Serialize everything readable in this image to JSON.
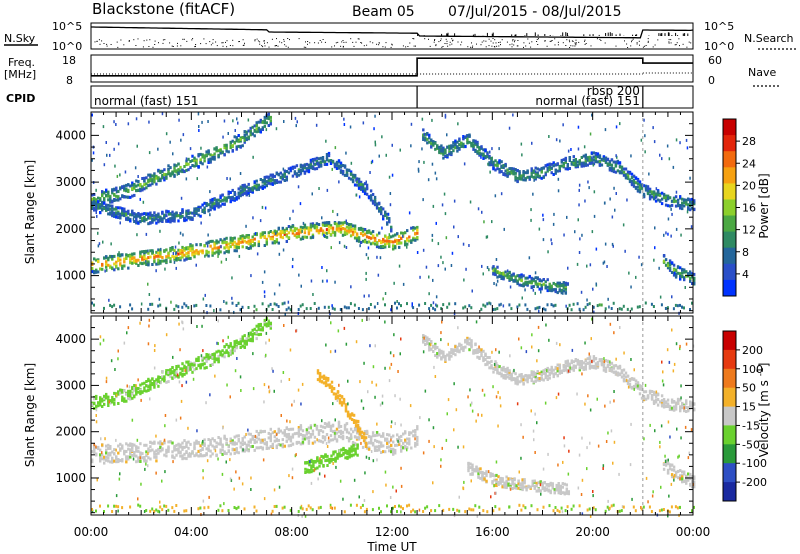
{
  "header": {
    "station": "Blackstone (fitACF)",
    "beam": "Beam 05",
    "date_range": "07/Jul/2015 - 08/Jul/2015"
  },
  "strip": {
    "nsky_label": "N.Sky",
    "nsearch_label": "N.Search",
    "noise_ticks": [
      "10^5",
      "10^0"
    ],
    "freq_label": "Freq.",
    "freq_unit": "[MHz]",
    "freq_ticks": [
      "18",
      "8"
    ],
    "nave_label": "Nave",
    "nave_ticks": [
      "60",
      "0"
    ],
    "cpid_label": "CPID",
    "cpid_segments": [
      {
        "label": "normal (fast) 151",
        "start": 0,
        "end": 13
      },
      {
        "label": "normal (fast) 151",
        "start": 13,
        "end": 22
      },
      {
        "label": "rbsp 200",
        "start": 22,
        "end": 24
      }
    ],
    "freq_steps": [
      {
        "start": 0,
        "end": 13,
        "freq": 10.3
      },
      {
        "start": 13,
        "end": 22,
        "freq": 16.8
      },
      {
        "start": 22,
        "end": 24,
        "freq": 15.0
      }
    ]
  },
  "chart_data": [
    {
      "type": "heatmap",
      "title": "",
      "xlabel": "",
      "ylabel": "Slant Range [km]",
      "x_range_hours": [
        0,
        24
      ],
      "ylim": [
        200,
        4500
      ],
      "yticks": [
        1000,
        2000,
        3000,
        4000
      ],
      "colorbar": {
        "label": "Power [dB]",
        "range": [
          0,
          32
        ],
        "ticks": [
          "4",
          "8",
          "12",
          "16",
          "20",
          "24",
          "28"
        ],
        "colors": [
          "#0033ff",
          "#2a4fc8",
          "#24669b",
          "#2f8a63",
          "#4ba843",
          "#8ccf2c",
          "#e8d51e",
          "#f6a111",
          "#f26a0e",
          "#e3250a",
          "#c80000"
        ]
      },
      "echo_bands": [
        {
          "x": [
            0,
            2,
            4,
            6,
            8,
            10,
            11,
            12,
            13
          ],
          "y": [
            1200,
            1350,
            1500,
            1700,
            1900,
            2000,
            1800,
            1700,
            1900
          ],
          "width": 200,
          "level": 24
        },
        {
          "x": [
            0,
            1.5,
            3,
            4.5,
            6,
            7.2
          ],
          "y": [
            2600,
            2800,
            3200,
            3500,
            3900,
            4400
          ],
          "width": 180,
          "level": 14
        },
        {
          "x": [
            0,
            2,
            4,
            6,
            8,
            9.5,
            11,
            12
          ],
          "y": [
            2500,
            2200,
            2300,
            2800,
            3200,
            3500,
            2800,
            2000
          ],
          "width": 150,
          "level": 10
        },
        {
          "x": [
            16,
            17,
            18,
            19
          ],
          "y": [
            1100,
            900,
            800,
            700
          ],
          "width": 150,
          "level": 14
        },
        {
          "x": [
            13.2,
            14,
            15,
            16,
            17,
            18,
            19,
            20,
            21,
            22,
            23,
            24
          ],
          "y": [
            4000,
            3600,
            3900,
            3400,
            3100,
            3200,
            3400,
            3500,
            3300,
            2800,
            2600,
            2500
          ],
          "width": 160,
          "level": 12
        },
        {
          "x": [
            22.8,
            23.2,
            23.6,
            24
          ],
          "y": [
            1300,
            1100,
            1000,
            900
          ],
          "width": 160,
          "level": 14
        }
      ]
    },
    {
      "type": "heatmap",
      "title": "",
      "xlabel": "Time UT",
      "ylabel": "Slant Range [km]",
      "x_range_hours": [
        0,
        24
      ],
      "xticks": [
        "00:00",
        "04:00",
        "08:00",
        "12:00",
        "16:00",
        "20:00",
        "00:00"
      ],
      "ylim": [
        200,
        4500
      ],
      "yticks": [
        1000,
        2000,
        3000,
        4000
      ],
      "colorbar": {
        "label": "Velocity [m s^-1]",
        "range": [
          -250,
          250
        ],
        "ticks": [
          "200",
          "100",
          "50",
          "15",
          "-15",
          "-50",
          "-100",
          "-200"
        ],
        "colors": [
          "#1a2aa0",
          "#2e4fc4",
          "#2a9a3a",
          "#6ad12f",
          "#c8c8c8",
          "#f3b12a",
          "#ee7a1d",
          "#e63a10",
          "#c80000"
        ]
      },
      "ground_scatter_color": "#c8c8c8",
      "echo_bands": [
        {
          "x": [
            0,
            2,
            4,
            6,
            8,
            10,
            11,
            12,
            13
          ],
          "y": [
            1500,
            1550,
            1600,
            1750,
            1900,
            2000,
            1800,
            1700,
            1900
          ],
          "width": 260,
          "level": 0
        },
        {
          "x": [
            0,
            1.5,
            3,
            4.5,
            6,
            7.2
          ],
          "y": [
            2600,
            2800,
            3200,
            3500,
            3900,
            4400
          ],
          "width": 180,
          "level": -40
        },
        {
          "x": [
            9,
            9.5,
            10,
            10.5,
            11
          ],
          "y": [
            3200,
            3000,
            2600,
            2200,
            1700
          ],
          "width": 150,
          "level": 60
        },
        {
          "x": [
            8.5,
            9.2,
            10,
            10.6
          ],
          "y": [
            1200,
            1350,
            1500,
            1600
          ],
          "width": 160,
          "level": -50
        },
        {
          "x": [
            15,
            16,
            17,
            18,
            19
          ],
          "y": [
            1200,
            950,
            850,
            800,
            750
          ],
          "width": 150,
          "level": 0
        },
        {
          "x": [
            13.2,
            14,
            15,
            16,
            17,
            18,
            19,
            20,
            21,
            22,
            23,
            24
          ],
          "y": [
            4000,
            3600,
            3900,
            3400,
            3100,
            3200,
            3400,
            3500,
            3300,
            2800,
            2600,
            2500
          ],
          "width": 160,
          "level": 0
        },
        {
          "x": [
            22.8,
            23.2,
            23.6,
            24
          ],
          "y": [
            1300,
            1100,
            1000,
            900
          ],
          "width": 160,
          "level": 0
        }
      ]
    }
  ]
}
